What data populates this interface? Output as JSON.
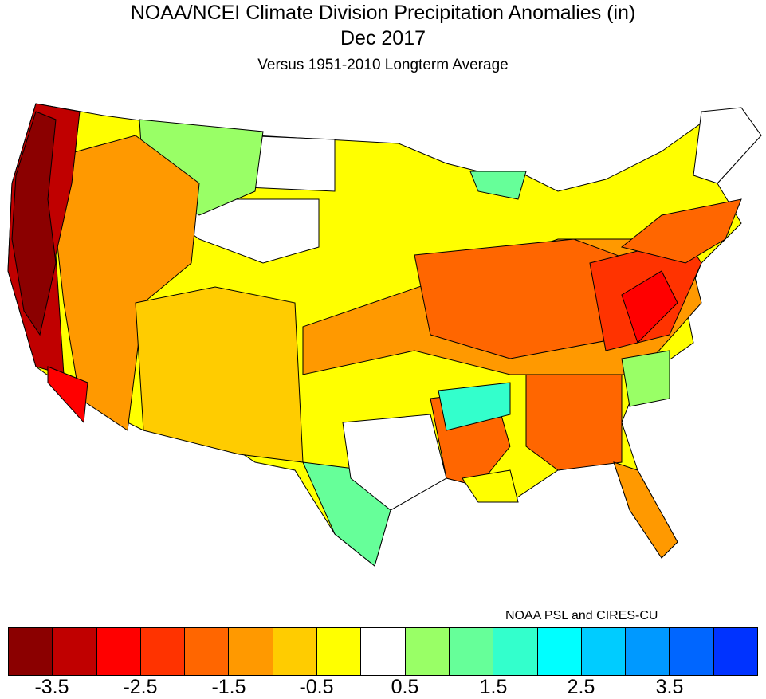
{
  "title": "NOAA/NCEI Climate Division Precipitation Anomalies (in)",
  "period": "Dec 2017",
  "subtitle": "Versus 1951-2010 Longterm Average",
  "credit": "NOAA PSL and CIRES-CU",
  "colorbar": {
    "colors": [
      "#8b0000",
      "#c00000",
      "#ff0000",
      "#ff3300",
      "#ff6600",
      "#ff9900",
      "#ffcc00",
      "#ffff00",
      "#ffffff",
      "#99ff66",
      "#66ff99",
      "#33ffcc",
      "#00ffff",
      "#00ccff",
      "#0099ff",
      "#0066ff",
      "#0033ff"
    ],
    "labels": [
      "-3.5",
      "-2.5",
      "-1.5",
      "-0.5",
      "0.5",
      "1.5",
      "2.5",
      "3.5"
    ]
  }
}
